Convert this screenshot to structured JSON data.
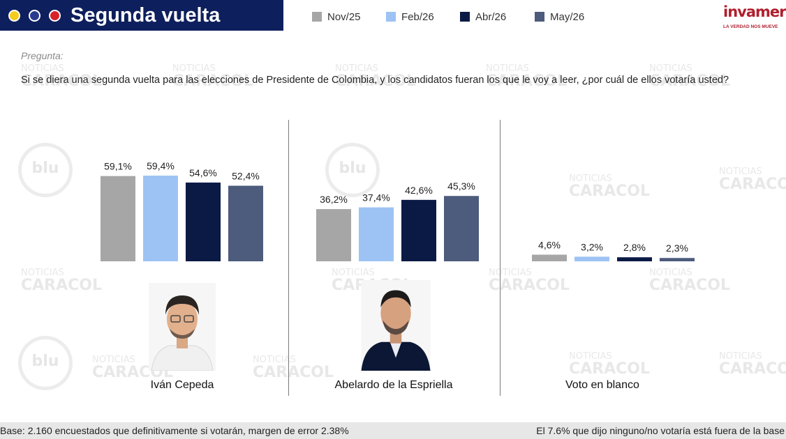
{
  "header": {
    "title": "Segunda vuelta",
    "dots": [
      "#f5cc1d",
      "#2a3a8f",
      "#d8222a"
    ]
  },
  "logo": {
    "name": "invamer",
    "tagline": "LA VERDAD NOS MUEVE"
  },
  "question": {
    "label": "Pregunta:",
    "text": "Si se diera una segunda vuelta para las elecciones de Presidente de Colombia, y los candidatos fueran los que le voy a leer, ¿por cuál de ellos votaría usted?"
  },
  "watermark": {
    "channel": "NOTICIAS",
    "name": "CARACOL",
    "blu": "blu"
  },
  "chart_data": {
    "type": "bar",
    "ylim": [
      0,
      100
    ],
    "categories": [
      "Iván Cepeda",
      "Abelardo de la Espriella",
      "Voto en blanco"
    ],
    "series": [
      {
        "name": "Nov/25",
        "color": "#a6a6a6",
        "values": [
          59.1,
          36.2,
          4.6
        ],
        "labels": [
          "59,1%",
          "36,2%",
          "4,6%"
        ]
      },
      {
        "name": "Feb/26",
        "color": "#9dc3f4",
        "values": [
          59.4,
          37.4,
          3.2
        ],
        "labels": [
          "59,4%",
          "37,4%",
          "3,2%"
        ]
      },
      {
        "name": "Abr/26",
        "color": "#0b1a45",
        "values": [
          54.6,
          42.6,
          2.8
        ],
        "labels": [
          "54,6%",
          "42,6%",
          "2,8%"
        ]
      },
      {
        "name": "May/26",
        "color": "#4d5b7c",
        "values": [
          52.4,
          45.3,
          2.3
        ],
        "labels": [
          "52,4%",
          "45,3%",
          "2,3%"
        ]
      }
    ],
    "legend": "top",
    "grid": false
  },
  "candidates": [
    {
      "name": "Iván Cepeda",
      "icon": "candidate-photo"
    },
    {
      "name": "Abelardo de la Espriella",
      "icon": "candidate-photo"
    },
    {
      "name": "Voto en blanco"
    }
  ],
  "footer": {
    "left": "Base: 2.160 encuestados que definitivamente si votarán, margen de error 2.38%",
    "right": "El 7.6% que dijo ninguno/no votaría está fuera de la base"
  }
}
